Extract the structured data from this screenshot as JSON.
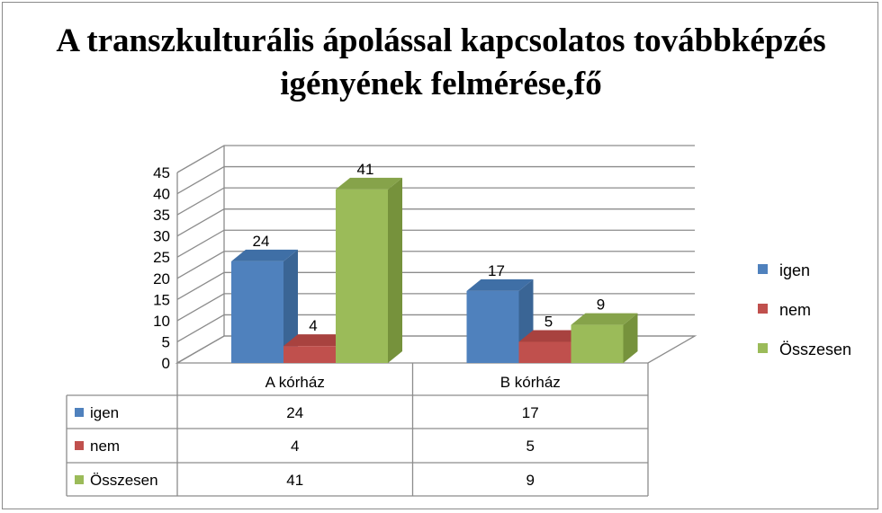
{
  "chart_data": {
    "type": "bar",
    "title": "A transzkulturális ápolással kapcsolatos továbbképzés igényének felmérése,fő",
    "categories": [
      "A kórház",
      "B kórház"
    ],
    "series": [
      {
        "name": "igen",
        "values": [
          24,
          17
        ],
        "color": "#4F81BD",
        "side": "#3A6595",
        "top": "#3F6FA6"
      },
      {
        "name": "nem",
        "values": [
          4,
          5
        ],
        "color": "#C0504D",
        "side": "#953735",
        "top": "#A8423F"
      },
      {
        "name": "Összesen",
        "values": [
          41,
          9
        ],
        "color": "#9BBB59",
        "side": "#76923C",
        "top": "#86A34A"
      }
    ],
    "ylim": [
      0,
      45
    ],
    "yticks": [
      "0",
      "5",
      "10",
      "15",
      "20",
      "25",
      "30",
      "35",
      "40",
      "45"
    ],
    "grid": true,
    "legend": "right",
    "data_table": true
  }
}
